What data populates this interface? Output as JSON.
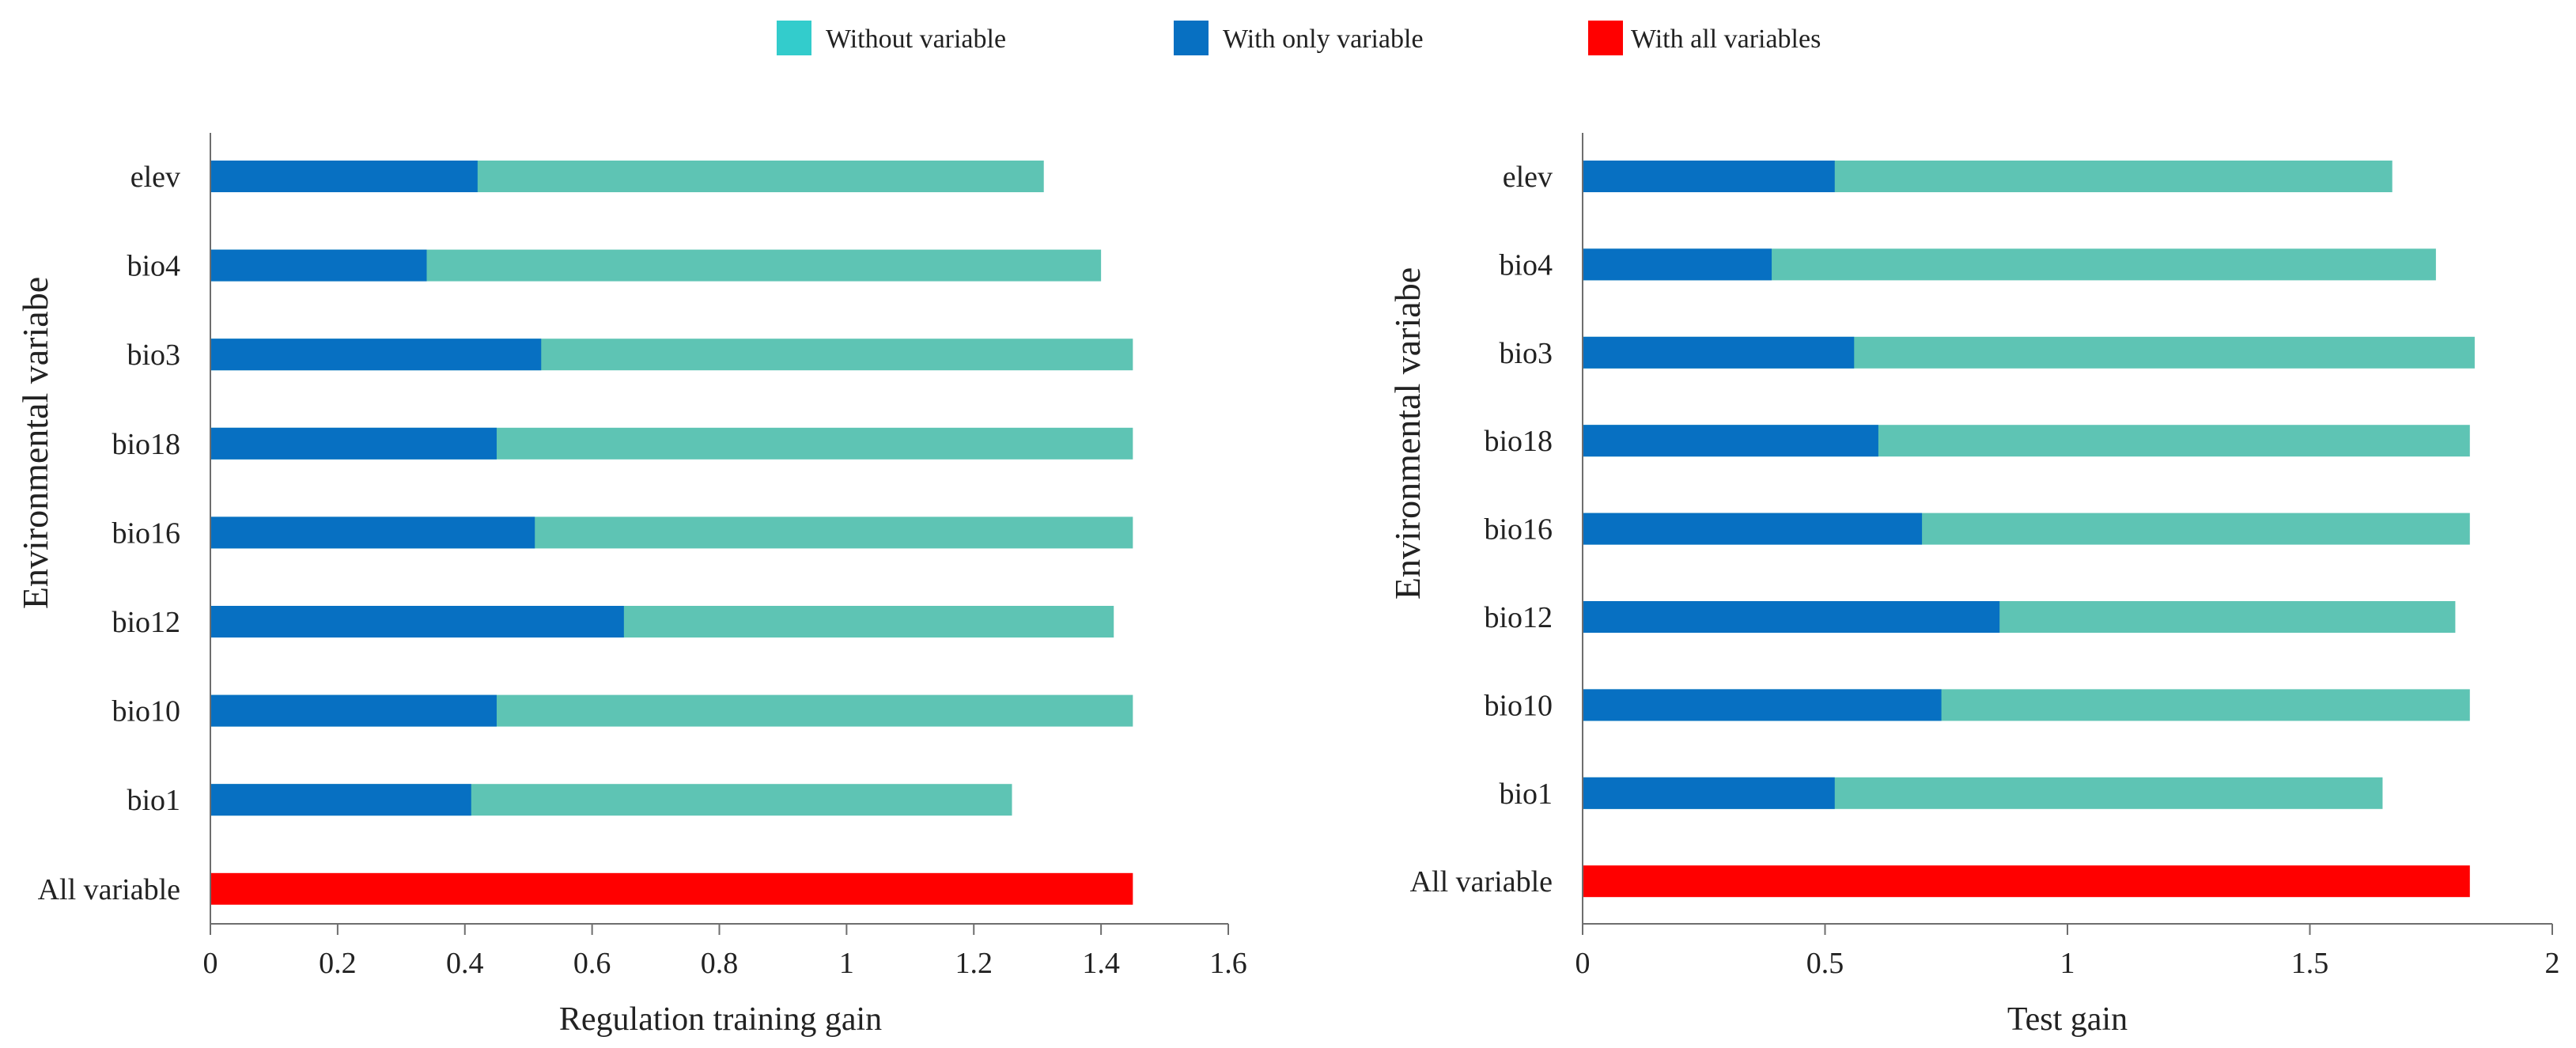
{
  "colors": {
    "legend_without": "#33CCCC",
    "without": "#5EC4B4",
    "with_only": "#0770C2",
    "with_all": "#FF0000",
    "axis": "#6E6E6E",
    "text": "#222222"
  },
  "legend": {
    "without": "Without variable",
    "with_only": "With only variable",
    "with_all": "With all variables"
  },
  "chart_data": [
    {
      "type": "bar",
      "orientation": "horizontal",
      "stacked": "overlay",
      "title": "",
      "xlabel": "Regulation training gain",
      "ylabel": "Environmental variabe",
      "xlim": [
        0,
        1.6
      ],
      "xticks": [
        0,
        0.2,
        0.4,
        0.6,
        0.8,
        1,
        1.2,
        1.4,
        1.6
      ],
      "xtick_labels": [
        "0",
        "0.2",
        "0.4",
        "0.6",
        "0.8",
        "1",
        "1.2",
        "1.4",
        "1.6"
      ],
      "categories": [
        "elev",
        "bio4",
        "bio3",
        "bio18",
        "bio16",
        "bio12",
        "bio10",
        "bio1",
        "All variable"
      ],
      "series": [
        {
          "name": "Without variable",
          "values": [
            1.31,
            1.4,
            1.45,
            1.45,
            1.45,
            1.42,
            1.45,
            1.26,
            null
          ]
        },
        {
          "name": "With only variable",
          "values": [
            0.42,
            0.34,
            0.52,
            0.45,
            0.51,
            0.65,
            0.45,
            0.41,
            null
          ]
        },
        {
          "name": "With all variables",
          "values": [
            null,
            null,
            null,
            null,
            null,
            null,
            null,
            null,
            1.45
          ]
        }
      ]
    },
    {
      "type": "bar",
      "orientation": "horizontal",
      "stacked": "overlay",
      "title": "",
      "xlabel": "Test gain",
      "ylabel": "Environmental variabe",
      "xlim": [
        0,
        2
      ],
      "xticks": [
        0,
        0.5,
        1,
        1.5,
        2
      ],
      "xtick_labels": [
        "0",
        "0.5",
        "1",
        "1.5",
        "2"
      ],
      "categories": [
        "elev",
        "bio4",
        "bio3",
        "bio18",
        "bio16",
        "bio12",
        "bio10",
        "bio1",
        "All variable"
      ],
      "series": [
        {
          "name": "Without variable",
          "values": [
            1.67,
            1.76,
            1.84,
            1.83,
            1.83,
            1.8,
            1.83,
            1.65,
            null
          ]
        },
        {
          "name": "With only variable",
          "values": [
            0.52,
            0.39,
            0.56,
            0.61,
            0.7,
            0.86,
            0.74,
            0.52,
            null
          ]
        },
        {
          "name": "With all variables",
          "values": [
            null,
            null,
            null,
            null,
            null,
            null,
            null,
            null,
            1.83
          ]
        }
      ]
    }
  ]
}
